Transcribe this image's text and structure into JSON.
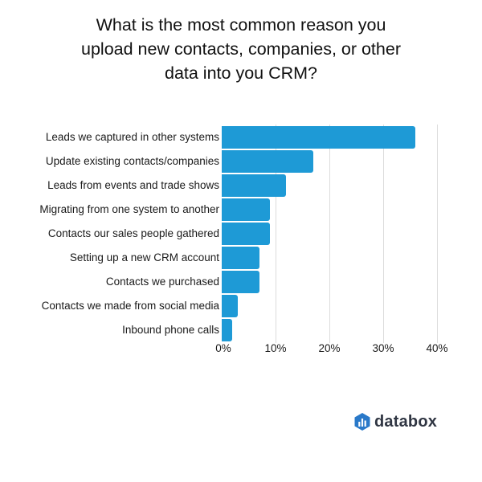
{
  "title": {
    "lines": [
      "What is the most common reason you",
      "upload new contacts, companies, or other",
      "data into you CRM?"
    ]
  },
  "colors": {
    "bar": "#1e9ad6",
    "grid": "#dcdcdc",
    "logo_mark": "#2a79c9",
    "logo_text": "#2f3542"
  },
  "branding": {
    "logo_text": "databox",
    "icon": "databox-bar-chart-hexagon-icon"
  },
  "chart_data": {
    "type": "bar",
    "orientation": "horizontal",
    "title": "What is the most common reason you upload new contacts, companies, or other data into you CRM?",
    "xlabel": "",
    "ylabel": "",
    "categories": [
      "Leads we captured in other systems",
      "Update existing contacts/companies",
      "Leads from events and trade shows",
      "Migrating from one system to another",
      "Contacts our sales people gathered",
      "Setting up a new CRM account",
      "Contacts we purchased",
      "Contacts we made from social media",
      "Inbound phone calls"
    ],
    "values": [
      36,
      17,
      12,
      9,
      9,
      7,
      7,
      3,
      2
    ],
    "unit": "%",
    "xlim": [
      0,
      40
    ],
    "xticks": [
      "0%",
      "10%",
      "20%",
      "30%",
      "40%"
    ],
    "grid": true,
    "legend": null
  }
}
